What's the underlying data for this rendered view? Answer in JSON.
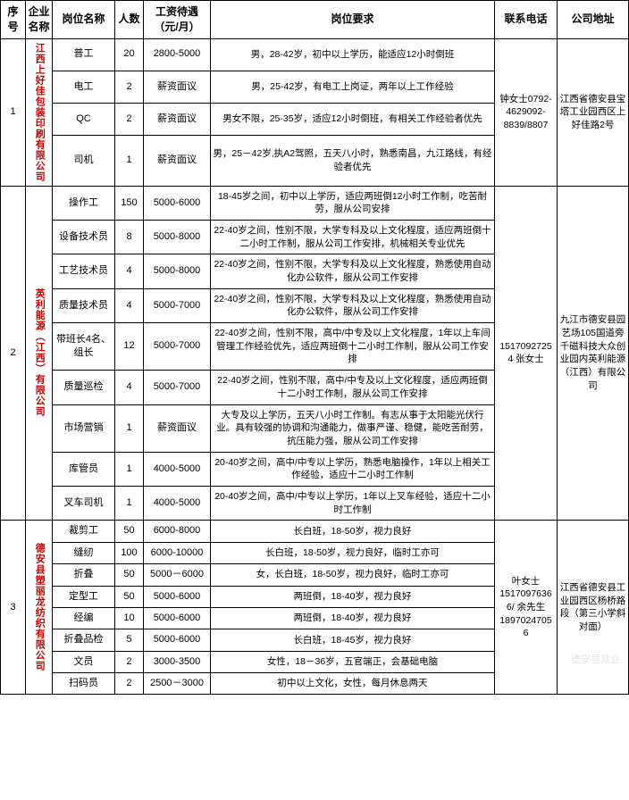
{
  "columns": [
    "序号",
    "企业名称",
    "岗位名称",
    "人数",
    "工资待遇（元/月）",
    "岗位要求",
    "联系电话",
    "公司地址"
  ],
  "watermark": "德安县就业",
  "table_style": {
    "border_color": "#000000",
    "company_text_color": "#cc0000",
    "background_color": "#ffffff",
    "header_fontsize": 12,
    "body_fontsize": 11,
    "req_fontsize": 10.5
  },
  "companies": [
    {
      "seq": "1",
      "name": "江西上好佳包装印刷有限公司",
      "tel": "钟女士0792-4629092-8839/8807",
      "addr": "江西省德安县宝塔工业园西区上好佳路2号",
      "jobs": [
        {
          "title": "普工",
          "count": "20",
          "salary": "2800-5000",
          "req": "男，28-42岁，初中以上学历，能适应12小时倒班"
        },
        {
          "title": "电工",
          "count": "2",
          "salary": "薪资面议",
          "req": "男，25-42岁，有电工上岗证，两年以上工作经验"
        },
        {
          "title": "QC",
          "count": "2",
          "salary": "薪资面议",
          "req": "男女不限，25-35岁，适应12小时倒班，有相关工作经验者优先"
        },
        {
          "title": "司机",
          "count": "1",
          "salary": "薪资面议",
          "req": "男，25－42岁,执A2驾照，五天八小时，熟悉南昌，九江路线，有经验者优先"
        }
      ]
    },
    {
      "seq": "2",
      "name": "英利能源（江西）有限公司",
      "tel": "1517092725 4 张女士",
      "addr": "九江市德安县园艺场105国道旁千磁科技大众创业园内英利能源（江西）有限公司",
      "jobs": [
        {
          "title": "操作工",
          "count": "150",
          "salary": "5000-6000",
          "req": "18-45岁之间，初中以上学历，适应两班倒12小时工作制，吃苦耐劳，服从公司安排"
        },
        {
          "title": "设备技术员",
          "count": "8",
          "salary": "5000-8000",
          "req": "22-40岁之间，性别不限，大学专科及以上文化程度，适应两班倒十二小时工作制，服从公司工作安排，机械相关专业优先"
        },
        {
          "title": "工艺技术员",
          "count": "4",
          "salary": "5000-8000",
          "req": "22-40岁之间，性别不限，大学专科及以上文化程度，熟悉使用自动化办公软件，服从公司工作安排"
        },
        {
          "title": "质量技术员",
          "count": "4",
          "salary": "5000-7000",
          "req": "22-40岁之间，性别不限，大学专科及以上文化程度，熟悉使用自动化办公软件，服从公司工作安排"
        },
        {
          "title": "带班长4名、组长",
          "count": "12",
          "salary": "5000-7000",
          "req": "22-40岁之间，性别不限，高中/中专及以上文化程度，1年以上车间管理工作经验优先，适应两班倒十二小时工作制，服从公司工作安排"
        },
        {
          "title": "质量巡检",
          "count": "4",
          "salary": "5000-7000",
          "req": "22-40岁之间，性别不限，高中/中专及以上文化程度，适应两班倒十二小时工作制，服从公司工作安排"
        },
        {
          "title": "市场营销",
          "count": "1",
          "salary": "薪资面议",
          "req": "大专及以上学历，五天八小时工作制。有志从事于太阳能光伏行业。具有较强的协调和沟通能力，做事严谨、稳健，能吃苦耐劳，抗压能力强，服从公司工作安排"
        },
        {
          "title": "库管员",
          "count": "1",
          "salary": "4000-5000",
          "req": "20-40岁之间，高中/中专以上学历，熟悉电脑操作，1年以上相关工作经验，适应十二小时工作制"
        },
        {
          "title": "叉车司机",
          "count": "1",
          "salary": "4000-5000",
          "req": "20-40岁之间，高中/中专以上学历，1年以上叉车经验，适应十二小时工作制"
        }
      ]
    },
    {
      "seq": "3",
      "name": "德安县塑丽龙纺织有限公司",
      "tel": "叶女士1517097636 6/ 余先生1897024705 6",
      "addr": "江西省德安县工业园西区杨桥路段（第三小学斜对面）",
      "jobs": [
        {
          "title": "裁剪工",
          "count": "50",
          "salary": "6000-8000",
          "req": "长白班，18-50岁，视力良好"
        },
        {
          "title": "缝纫",
          "count": "100",
          "salary": "6000-10000",
          "req": "长白班，18-50岁，视力良好，临时工亦可"
        },
        {
          "title": "折叠",
          "count": "50",
          "salary": "5000－6000",
          "req": "女，长白班，18-50岁，视力良好，临时工亦可"
        },
        {
          "title": "定型工",
          "count": "50",
          "salary": "5000-6000",
          "req": "两班倒，18-40岁，视力良好"
        },
        {
          "title": "经编",
          "count": "10",
          "salary": "5000-6000",
          "req": "两班倒，18-40岁，视力良好"
        },
        {
          "title": "折叠品检",
          "count": "5",
          "salary": "5000-6000",
          "req": "长白班，18-45岁，视力良好"
        },
        {
          "title": "文员",
          "count": "2",
          "salary": "3000-3500",
          "req": "女性，18－36岁，五官端正，会基础电脑"
        },
        {
          "title": "扫码员",
          "count": "2",
          "salary": "2500－3000",
          "req": "初中以上文化，女性，每月休息两天"
        }
      ]
    }
  ]
}
